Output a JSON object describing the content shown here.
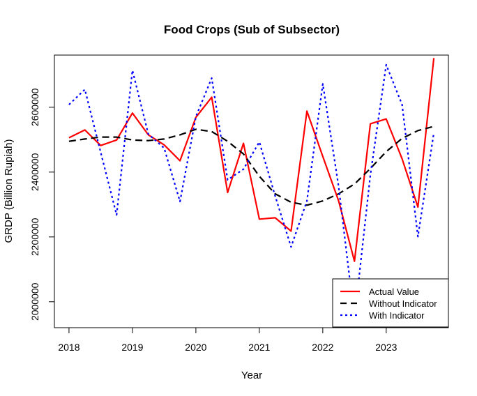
{
  "chart_data": {
    "type": "line",
    "title": "Food Crops (Sub of Subsector)",
    "xlabel": "Year",
    "ylabel": "GRDP (Billion Rupiah)",
    "x_ticks": [
      2018,
      2019,
      2020,
      2021,
      2022,
      2023
    ],
    "x_tick_labels": [
      "2018",
      "2019",
      "2020",
      "2021",
      "2022",
      "2023"
    ],
    "y_ticks": [
      2000000,
      2200000,
      2400000,
      2600000
    ],
    "y_tick_labels": [
      "2000000",
      "2200000",
      "2400000",
      "2600000"
    ],
    "xlim": [
      2017.77,
      2023.98
    ],
    "ylim": [
      1920000,
      2761000
    ],
    "grid": false,
    "legend_position": "bottom-right",
    "x": [
      2018.0,
      2018.25,
      2018.5,
      2018.75,
      2019.0,
      2019.25,
      2019.5,
      2019.75,
      2020.0,
      2020.25,
      2020.5,
      2020.75,
      2021.0,
      2021.25,
      2021.5,
      2021.75,
      2022.0,
      2022.25,
      2022.5,
      2022.75,
      2023.0,
      2023.25,
      2023.5,
      2023.75
    ],
    "series": [
      {
        "name": "Actual Value",
        "color": "#ff0000",
        "style": "solid",
        "values": [
          2506000,
          2530000,
          2482000,
          2499000,
          2582000,
          2515000,
          2484000,
          2435000,
          2569000,
          2631000,
          2337000,
          2489000,
          2255000,
          2259000,
          2218000,
          2588000,
          2448000,
          2311000,
          2125000,
          2549000,
          2564000,
          2441000,
          2292000,
          2752000
        ]
      },
      {
        "name": "Without Indicator",
        "color": "#000000",
        "style": "dashed",
        "values": [
          2495000,
          2502000,
          2508000,
          2508000,
          2499000,
          2497000,
          2502000,
          2515000,
          2532000,
          2525000,
          2495000,
          2456000,
          2387000,
          2333000,
          2307000,
          2298000,
          2311000,
          2333000,
          2363000,
          2411000,
          2463000,
          2504000,
          2528000,
          2541000
        ]
      },
      {
        "name": "With Indicator",
        "color": "#0000ff",
        "style": "dotted",
        "values": [
          2608000,
          2655000,
          2461000,
          2268000,
          2714000,
          2517000,
          2474000,
          2309000,
          2571000,
          2690000,
          2376000,
          2409000,
          2493000,
          2326000,
          2169000,
          2311000,
          2672000,
          2355000,
          1948000,
          2391000,
          2731000,
          2608000,
          2201000,
          2521000
        ]
      }
    ]
  }
}
